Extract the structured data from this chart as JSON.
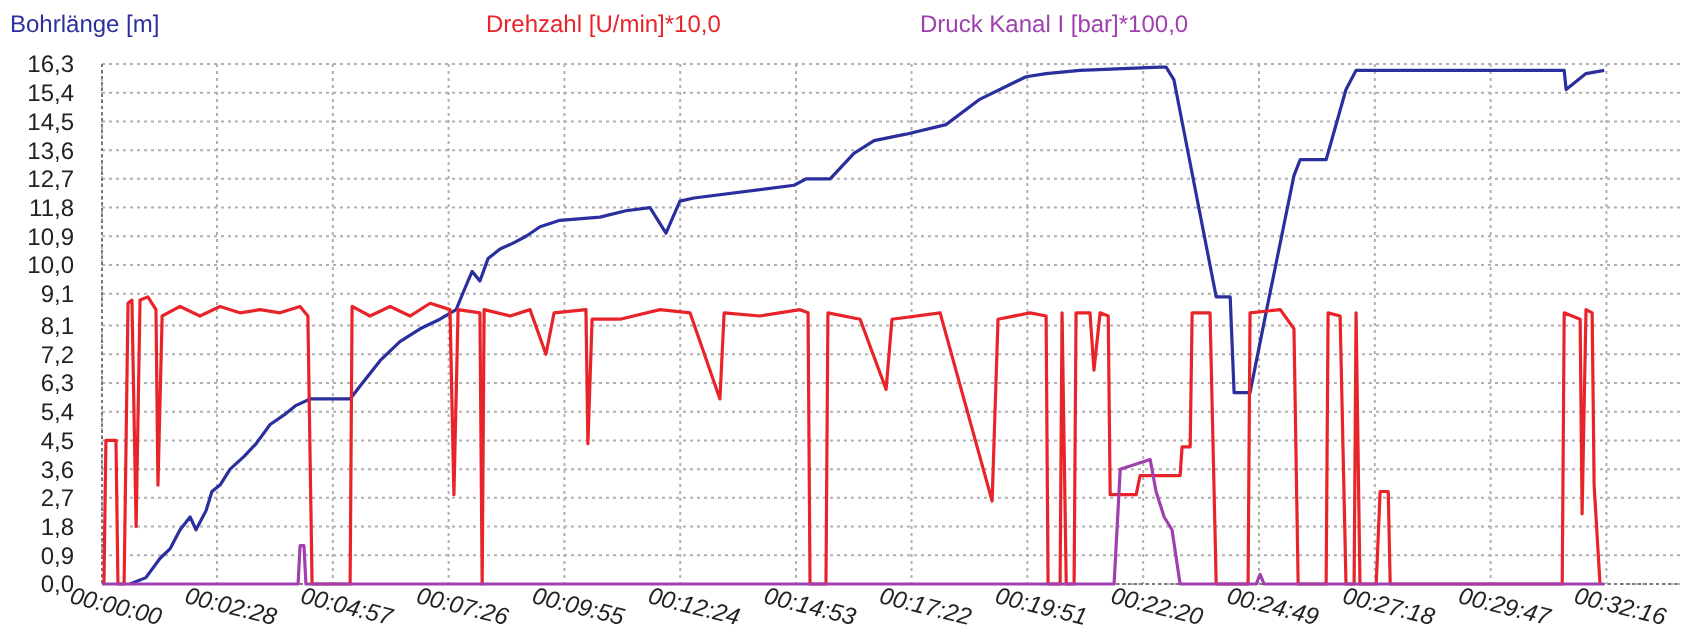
{
  "chart_data": {
    "type": "line",
    "legend": "top",
    "grid": true,
    "line_style": "solid",
    "marker": "none",
    "xlim": [
      0,
      0.5641
    ],
    "ylim": [
      0,
      16.3
    ],
    "xticks": [
      {
        "value": 0,
        "label": "00:00:00"
      },
      {
        "value": 0.0411,
        "label": "00:02:28"
      },
      {
        "value": 0.0825,
        "label": "00:04:57"
      },
      {
        "value": 0.1239,
        "label": "00:07:26"
      },
      {
        "value": 0.1653,
        "label": "00:09:55"
      },
      {
        "value": 0.2067,
        "label": "00:12:24"
      },
      {
        "value": 0.2481,
        "label": "00:14:53"
      },
      {
        "value": 0.2894,
        "label": "00:17:22"
      },
      {
        "value": 0.3308,
        "label": "00:19:51"
      },
      {
        "value": 0.3722,
        "label": "00:22:20"
      },
      {
        "value": 0.4136,
        "label": "00:24:49"
      },
      {
        "value": 0.455,
        "label": "00:27:18"
      },
      {
        "value": 0.4964,
        "label": "00:29:47"
      },
      {
        "value": 0.5378,
        "label": "00:32:16"
      }
    ],
    "yticks": [
      {
        "value": 0,
        "label": "0,0"
      },
      {
        "value": 0.9,
        "label": "0,9"
      },
      {
        "value": 1.8,
        "label": "1,8"
      },
      {
        "value": 2.7,
        "label": "2,7"
      },
      {
        "value": 3.6,
        "label": "3,6"
      },
      {
        "value": 4.5,
        "label": "4,5"
      },
      {
        "value": 5.4,
        "label": "5,4"
      },
      {
        "value": 6.3,
        "label": "6,3"
      },
      {
        "value": 7.2,
        "label": "7,2"
      },
      {
        "value": 8.1,
        "label": "8,1"
      },
      {
        "value": 9.1,
        "label": "9,1"
      },
      {
        "value": 10,
        "label": "10,0"
      },
      {
        "value": 10.9,
        "label": "10,9"
      },
      {
        "value": 11.8,
        "label": "11,8"
      },
      {
        "value": 12.7,
        "label": "12,7"
      },
      {
        "value": 13.6,
        "label": "13,6"
      },
      {
        "value": 14.5,
        "label": "14,5"
      },
      {
        "value": 15.4,
        "label": "15,4"
      },
      {
        "value": 16.3,
        "label": "16,3"
      }
    ],
    "series": [
      {
        "name": "Bohrlänge [m]",
        "color": "#2b2f9e",
        "x": [
          0.01,
          0.0157,
          0.0207,
          0.0243,
          0.0279,
          0.0315,
          0.0336,
          0.0372,
          0.0393,
          0.0422,
          0.0458,
          0.0508,
          0.0551,
          0.0601,
          0.0651,
          0.0694,
          0.0744,
          0.0887,
          0.0922,
          0.0994,
          0.1065,
          0.1137,
          0.1208,
          0.1266,
          0.1294,
          0.1323,
          0.1351,
          0.138,
          0.1423,
          0.1473,
          0.1516,
          0.1566,
          0.1637,
          0.178,
          0.1873,
          0.1959,
          0.2016,
          0.2066,
          0.2116,
          0.2474,
          0.2517,
          0.2603,
          0.2688,
          0.276,
          0.2874,
          0.3017,
          0.3139,
          0.3303,
          0.3375,
          0.3496,
          0.3782,
          0.3804,
          0.3832,
          0.3983,
          0.4033,
          0.4047,
          0.4104,
          0.4161,
          0.4261,
          0.4283,
          0.4376,
          0.4447,
          0.4483,
          0.5227,
          0.5234,
          0.5305,
          0.537
        ],
        "values": [
          0,
          0.2,
          0.8,
          1.1,
          1.7,
          2.1,
          1.7,
          2.3,
          2.9,
          3.1,
          3.6,
          4.0,
          4.4,
          5.0,
          5.3,
          5.6,
          5.8,
          5.8,
          6.2,
          7.0,
          7.6,
          8.0,
          8.3,
          8.6,
          9.2,
          9.8,
          9.5,
          10.2,
          10.5,
          10.7,
          10.9,
          11.2,
          11.4,
          11.5,
          11.7,
          11.8,
          11.0,
          12.0,
          12.1,
          12.5,
          12.7,
          12.7,
          13.5,
          13.9,
          14.1,
          14.4,
          15.2,
          15.9,
          16.0,
          16.1,
          16.2,
          16.2,
          15.8,
          9.0,
          9.0,
          6.0,
          6.0,
          8.5,
          12.8,
          13.3,
          13.3,
          15.5,
          16.1,
          16.1,
          15.5,
          16.0,
          16.1
        ]
      },
      {
        "name": "Drehzahl [U/min]*10,0",
        "color": "#e8242a",
        "x": [
          0.0007,
          0.0014,
          0.005,
          0.0057,
          0.0079,
          0.0093,
          0.0107,
          0.0122,
          0.0136,
          0.0164,
          0.0193,
          0.02,
          0.0215,
          0.0279,
          0.035,
          0.0422,
          0.0493,
          0.0565,
          0.0636,
          0.0708,
          0.0736,
          0.0751,
          0.0887,
          0.0894,
          0.0958,
          0.103,
          0.1101,
          0.1173,
          0.1244,
          0.1258,
          0.1273,
          0.1351,
          0.1359,
          0.1366,
          0.1459,
          0.153,
          0.1587,
          0.1616,
          0.173,
          0.1737,
          0.1752,
          0.1852,
          0.1995,
          0.2102,
          0.2209,
          0.2224,
          0.2352,
          0.2495,
          0.2524,
          0.2531,
          0.2588,
          0.2595,
          0.271,
          0.2803,
          0.2824,
          0.2996,
          0.3182,
          0.3203,
          0.3318,
          0.3375,
          0.3382,
          0.3425,
          0.3432,
          0.3447,
          0.3475,
          0.3482,
          0.3532,
          0.3546,
          0.3568,
          0.3597,
          0.3604,
          0.3697,
          0.3711,
          0.3854,
          0.3861,
          0.389,
          0.3897,
          0.3961,
          0.3983,
          0.4097,
          0.4104,
          0.4212,
          0.4261,
          0.4276,
          0.4376,
          0.4383,
          0.4426,
          0.4447,
          0.4476,
          0.4483,
          0.4497,
          0.4555,
          0.4569,
          0.4598,
          0.4605,
          0.522,
          0.5227,
          0.5284,
          0.5291,
          0.5305,
          0.5327,
          0.5334,
          0.5355
        ],
        "values": [
          0,
          4.5,
          4.5,
          0,
          0,
          8.8,
          8.9,
          1.8,
          8.9,
          9.0,
          8.6,
          3.1,
          8.4,
          8.7,
          8.4,
          8.7,
          8.5,
          8.6,
          8.5,
          8.7,
          8.4,
          0,
          0,
          8.7,
          8.4,
          8.7,
          8.4,
          8.8,
          8.6,
          2.8,
          8.6,
          8.5,
          0,
          8.6,
          8.4,
          8.6,
          7.2,
          8.5,
          8.6,
          4.4,
          8.3,
          8.3,
          8.6,
          8.5,
          5.8,
          8.5,
          8.4,
          8.6,
          8.5,
          0,
          0,
          8.5,
          8.3,
          6.1,
          8.3,
          8.5,
          2.6,
          8.3,
          8.5,
          8.4,
          0,
          0,
          8.5,
          0,
          0,
          8.5,
          8.5,
          6.7,
          8.5,
          8.4,
          2.8,
          2.8,
          3.4,
          3.4,
          4.3,
          4.3,
          8.5,
          8.5,
          0,
          0,
          8.5,
          8.6,
          8.0,
          0,
          0,
          8.5,
          8.4,
          0,
          0,
          8.5,
          0,
          0,
          2.9,
          2.9,
          0,
          0,
          8.5,
          8.3,
          2.2,
          8.6,
          8.5,
          3.1,
          0
        ]
      },
      {
        "name": "Druck Kanal I [bar]*100,0",
        "color": "#a040b0",
        "x": [
          0,
          0.0701,
          0.0708,
          0.0722,
          0.0729,
          0.3618,
          0.364,
          0.3747,
          0.3768,
          0.3797,
          0.3825,
          0.3854,
          0.4126,
          0.414,
          0.4154,
          0.537
        ],
        "values": [
          0,
          0,
          1.2,
          1.2,
          0,
          0,
          3.6,
          3.9,
          2.9,
          2.1,
          1.7,
          0,
          0,
          0.3,
          0,
          0
        ]
      }
    ]
  }
}
